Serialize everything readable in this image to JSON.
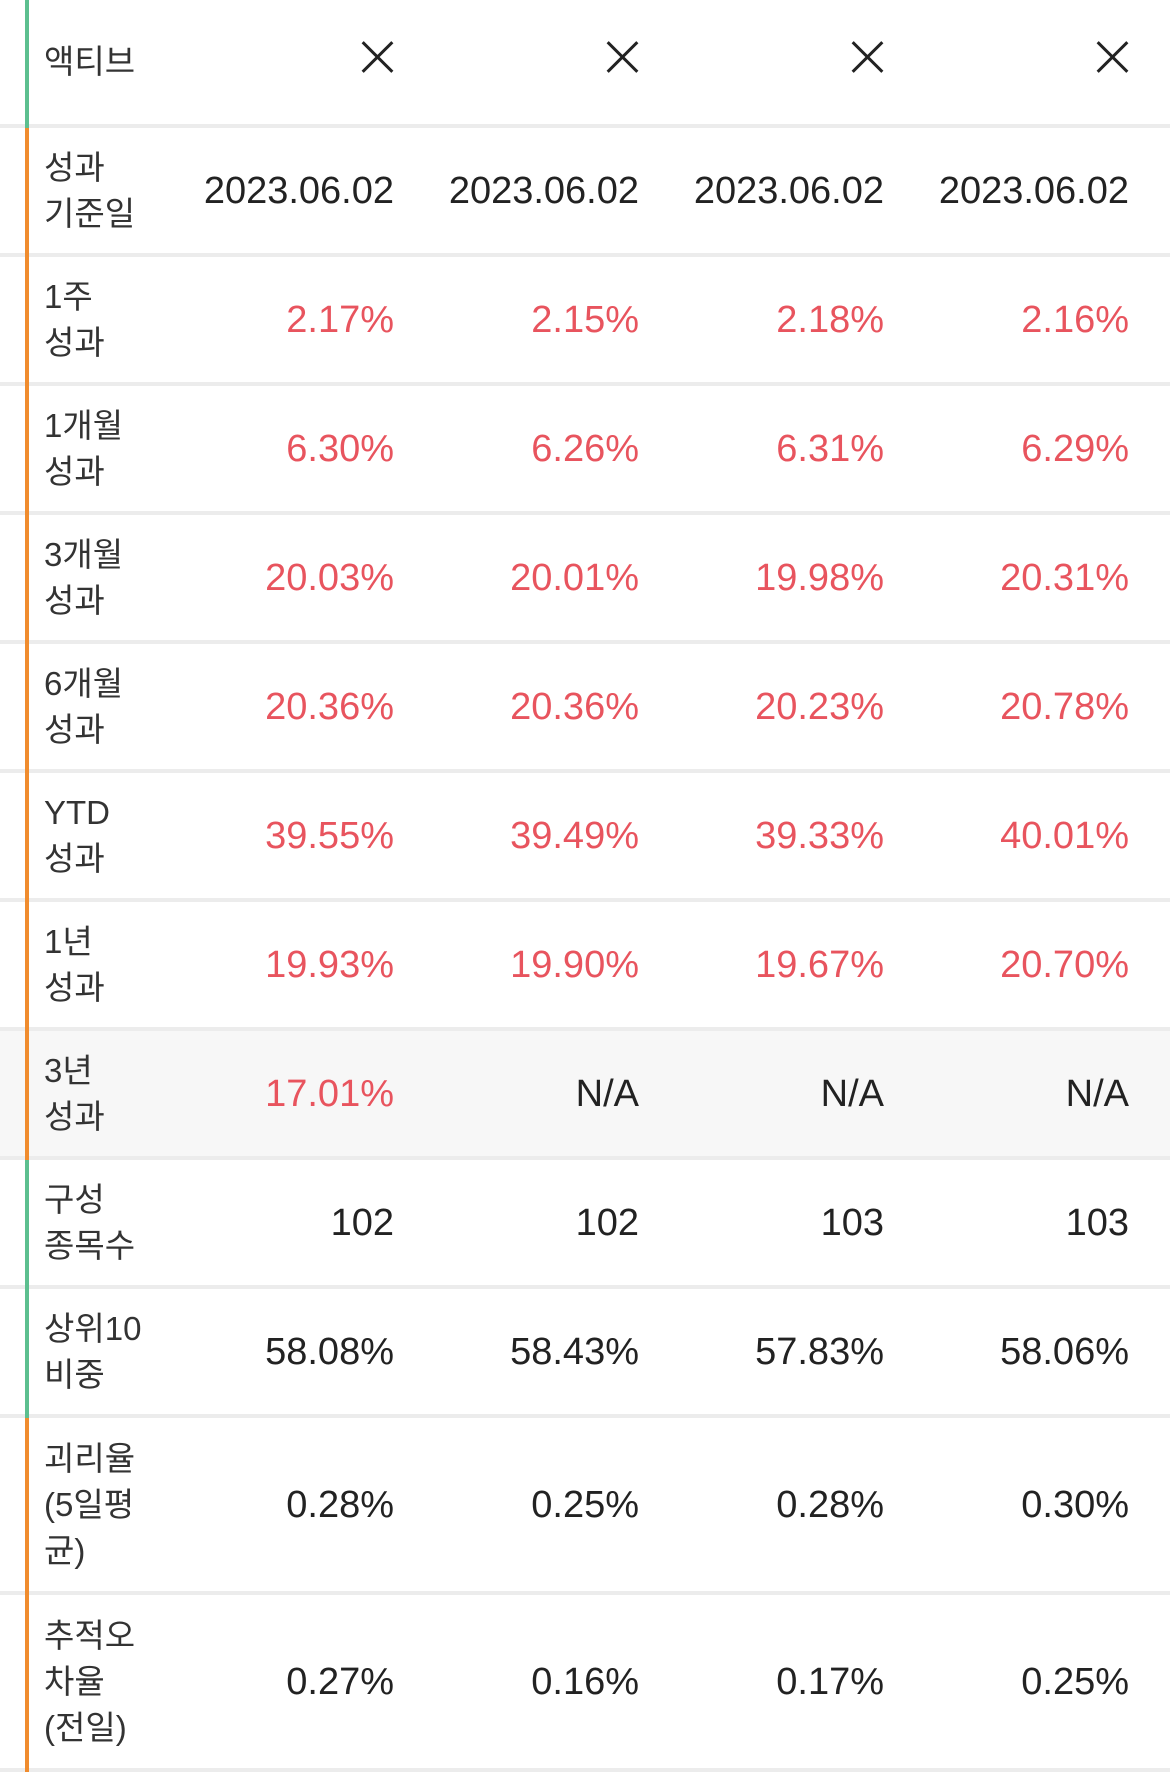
{
  "header": {
    "label": "액티브"
  },
  "rows": [
    {
      "label": "성과\n기준일",
      "values": [
        "2023.06.02",
        "2023.06.02",
        "2023.06.02",
        "2023.06.02"
      ]
    },
    {
      "label": "1주\n성과",
      "values": [
        "2.17%",
        "2.15%",
        "2.18%",
        "2.16%"
      ]
    },
    {
      "label": "1개월\n성과",
      "values": [
        "6.30%",
        "6.26%",
        "6.31%",
        "6.29%"
      ]
    },
    {
      "label": "3개월\n성과",
      "values": [
        "20.03%",
        "20.01%",
        "19.98%",
        "20.31%"
      ]
    },
    {
      "label": "6개월\n성과",
      "values": [
        "20.36%",
        "20.36%",
        "20.23%",
        "20.78%"
      ]
    },
    {
      "label": "YTD\n성과",
      "values": [
        "39.55%",
        "39.49%",
        "39.33%",
        "40.01%"
      ]
    },
    {
      "label": "1년\n성과",
      "values": [
        "19.93%",
        "19.90%",
        "19.67%",
        "20.70%"
      ]
    },
    {
      "label": "3년\n성과",
      "values": [
        "17.01%",
        "N/A",
        "N/A",
        "N/A"
      ]
    },
    {
      "label": "구성\n종목수",
      "values": [
        "102",
        "102",
        "103",
        "103"
      ]
    },
    {
      "label": "상위10\n비중",
      "values": [
        "58.08%",
        "58.43%",
        "57.83%",
        "58.06%"
      ]
    },
    {
      "label": "괴리율\n(5일평\n균)",
      "values": [
        "0.28%",
        "0.25%",
        "0.28%",
        "0.30%"
      ]
    },
    {
      "label": "추적오\n차율\n(전일)",
      "values": [
        "0.27%",
        "0.16%",
        "0.17%",
        "0.25%"
      ]
    }
  ],
  "colors": {
    "positive": "#e8545e",
    "neutral": "#222222",
    "accent_green": "#5cbf8f",
    "accent_orange": "#f08c2e"
  }
}
